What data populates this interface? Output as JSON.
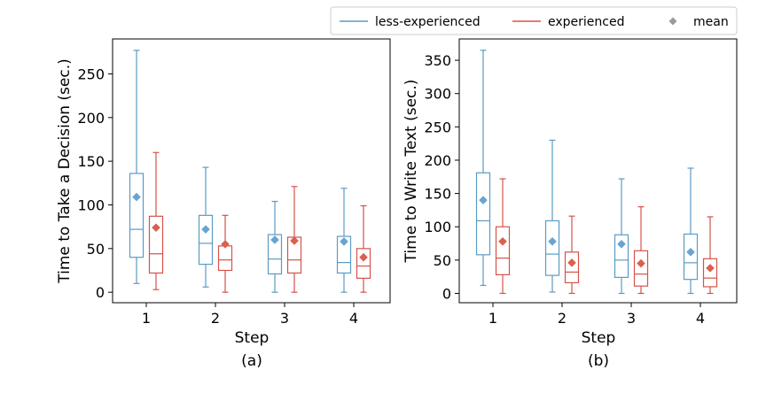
{
  "legend": {
    "items": [
      {
        "label": "less-experienced",
        "kind": "line",
        "color": "#5b9bc4"
      },
      {
        "label": "experienced",
        "kind": "line",
        "color": "#d6524a"
      },
      {
        "label": "mean",
        "kind": "diamond",
        "color": "#9b9b9b"
      }
    ],
    "placement": "top-right"
  },
  "chart_data": [
    {
      "type": "boxplot",
      "caption": "(a)",
      "xlabel": "Step",
      "ylabel": "Time to Take a Decision (sec.)",
      "categories": [
        "1",
        "2",
        "3",
        "4"
      ],
      "ylim": [
        -12,
        290
      ],
      "yticks": [
        0,
        50,
        100,
        150,
        200,
        250
      ],
      "grid": false,
      "series": [
        {
          "name": "less-experienced",
          "color": "#5b9bc4",
          "mean_color": "#6aa3d0",
          "boxes": [
            {
              "whislo": 10,
              "q1": 40,
              "med": 72,
              "q3": 136,
              "whishi": 277,
              "mean": 109
            },
            {
              "whislo": 6,
              "q1": 32,
              "med": 56,
              "q3": 88,
              "whishi": 143,
              "mean": 72
            },
            {
              "whislo": 0,
              "q1": 21,
              "med": 38,
              "q3": 66,
              "whishi": 104,
              "mean": 60
            },
            {
              "whislo": 0,
              "q1": 22,
              "med": 34,
              "q3": 64,
              "whishi": 119,
              "mean": 58
            }
          ]
        },
        {
          "name": "experienced",
          "color": "#d6524a",
          "mean_color": "#d9604f",
          "boxes": [
            {
              "whislo": 3,
              "q1": 22,
              "med": 44,
              "q3": 87,
              "whishi": 160,
              "mean": 74
            },
            {
              "whislo": 0,
              "q1": 25,
              "med": 37,
              "q3": 53,
              "whishi": 88,
              "mean": 55
            },
            {
              "whislo": 0,
              "q1": 22,
              "med": 37,
              "q3": 63,
              "whishi": 121,
              "mean": 59
            },
            {
              "whislo": 0,
              "q1": 16,
              "med": 30,
              "q3": 50,
              "whishi": 99,
              "mean": 40
            }
          ]
        }
      ]
    },
    {
      "type": "boxplot",
      "caption": "(b)",
      "xlabel": "Step",
      "ylabel": "Time to Write Text (sec.)",
      "categories": [
        "1",
        "2",
        "3",
        "4"
      ],
      "ylim": [
        -14,
        382
      ],
      "yticks": [
        0,
        50,
        100,
        150,
        200,
        250,
        300,
        350
      ],
      "grid": false,
      "series": [
        {
          "name": "less-experienced",
          "color": "#5b9bc4",
          "mean_color": "#6aa3d0",
          "boxes": [
            {
              "whislo": 12,
              "q1": 58,
              "med": 109,
              "q3": 181,
              "whishi": 365,
              "mean": 140
            },
            {
              "whislo": 2,
              "q1": 27,
              "med": 59,
              "q3": 109,
              "whishi": 230,
              "mean": 78
            },
            {
              "whislo": 0,
              "q1": 24,
              "med": 50,
              "q3": 88,
              "whishi": 172,
              "mean": 74
            },
            {
              "whislo": 0,
              "q1": 21,
              "med": 46,
              "q3": 89,
              "whishi": 188,
              "mean": 62
            }
          ]
        },
        {
          "name": "experienced",
          "color": "#d6524a",
          "mean_color": "#d9604f",
          "boxes": [
            {
              "whislo": 0,
              "q1": 28,
              "med": 53,
              "q3": 100,
              "whishi": 172,
              "mean": 78
            },
            {
              "whislo": 0,
              "q1": 16,
              "med": 32,
              "q3": 62,
              "whishi": 116,
              "mean": 46
            },
            {
              "whislo": 0,
              "q1": 11,
              "med": 29,
              "q3": 64,
              "whishi": 130,
              "mean": 45
            },
            {
              "whislo": 0,
              "q1": 10,
              "med": 23,
              "q3": 52,
              "whishi": 115,
              "mean": 38
            }
          ]
        }
      ]
    }
  ]
}
